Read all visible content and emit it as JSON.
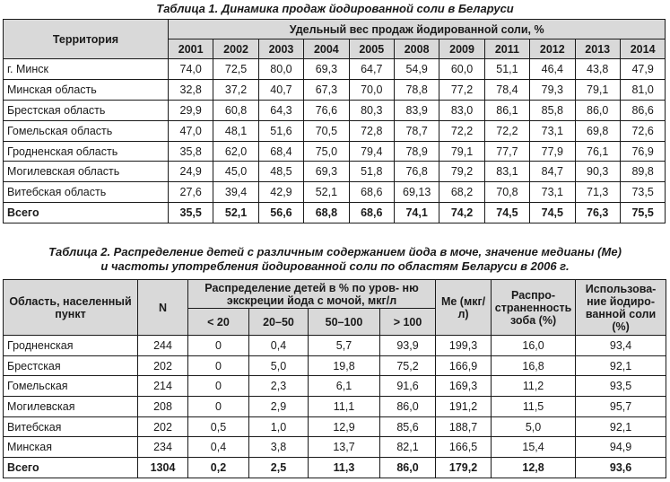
{
  "table1": {
    "caption": "Таблица 1. Динамика продаж йодированной соли в Беларуси",
    "territory_header": "Территория",
    "group_header": "Удельный вес продаж йодированной соли, %",
    "years": [
      "2001",
      "2002",
      "2003",
      "2004",
      "2005",
      "2008",
      "2009",
      "2011",
      "2012",
      "2013",
      "2014"
    ],
    "rows": [
      {
        "name": "г. Минск",
        "values": [
          "74,0",
          "72,5",
          "80,0",
          "69,3",
          "64,7",
          "54,9",
          "60,0",
          "51,1",
          "46,4",
          "43,8",
          "47,9"
        ]
      },
      {
        "name": "Минская область",
        "values": [
          "32,8",
          "37,2",
          "40,7",
          "67,3",
          "70,0",
          "78,8",
          "77,2",
          "78,4",
          "79,3",
          "79,1",
          "81,0"
        ]
      },
      {
        "name": "Брестская область",
        "values": [
          "29,9",
          "60,8",
          "64,3",
          "76,6",
          "80,3",
          "83,9",
          "83,0",
          "86,1",
          "85,8",
          "86,0",
          "86,6"
        ]
      },
      {
        "name": "Гомельская область",
        "values": [
          "47,0",
          "48,1",
          "51,6",
          "70,5",
          "72,8",
          "78,7",
          "72,2",
          "72,2",
          "73,1",
          "69,8",
          "72,6"
        ]
      },
      {
        "name": "Гродненская область",
        "values": [
          "35,8",
          "62,0",
          "68,4",
          "75,0",
          "79,4",
          "78,9",
          "79,1",
          "77,7",
          "77,9",
          "76,1",
          "76,9"
        ]
      },
      {
        "name": "Могилевская область",
        "values": [
          "24,9",
          "45,0",
          "48,5",
          "69,3",
          "51,8",
          "76,8",
          "79,2",
          "83,1",
          "84,7",
          "90,3",
          "89,8"
        ]
      },
      {
        "name": "Витебская область",
        "values": [
          "27,6",
          "39,4",
          "42,9",
          "52,1",
          "68,6",
          "69,13",
          "68,2",
          "70,8",
          "73,1",
          "71,3",
          "73,5"
        ]
      }
    ],
    "total": {
      "name": "Всего",
      "values": [
        "35,5",
        "52,1",
        "56,6",
        "68,8",
        "68,6",
        "74,1",
        "74,2",
        "74,5",
        "74,5",
        "76,3",
        "75,5"
      ]
    }
  },
  "table2": {
    "caption_line1": "Таблица 2. Распределение детей с различным содержанием йода в моче, значение медианы (Ме)",
    "caption_line2": "и частоты употребления йодированной соли по областям Беларуси в 2006 г.",
    "region_header": "Область, населенный пункт",
    "n_header": "N",
    "dist_header": "Распределение детей в % по уров- ню экскреции йода с мочой, мкг/л",
    "bins": [
      "< 20",
      "20–50",
      "50–100",
      "> 100"
    ],
    "me_header": "Ме (мкг/л)",
    "goiter_header": "Распро- страненность зоба (%)",
    "salt_header": "Использова- ние йодиро- ванной соли (%)",
    "rows": [
      {
        "name": "Гродненская",
        "n": "244",
        "b1": "0",
        "b2": "0,4",
        "b3": "5,7",
        "b4": "93,9",
        "me": "199,3",
        "goiter": "16,0",
        "salt": "93,4"
      },
      {
        "name": "Брестская",
        "n": "202",
        "b1": "0",
        "b2": "5,0",
        "b3": "19,8",
        "b4": "75,2",
        "me": "166,9",
        "goiter": "16,8",
        "salt": "92,1"
      },
      {
        "name": "Гомельская",
        "n": "214",
        "b1": "0",
        "b2": "2,3",
        "b3": "6,1",
        "b4": "91,6",
        "me": "169,3",
        "goiter": "11,2",
        "salt": "93,5"
      },
      {
        "name": "Могилевская",
        "n": "208",
        "b1": "0",
        "b2": "2,9",
        "b3": "11,1",
        "b4": "86,0",
        "me": "191,2",
        "goiter": "11,5",
        "salt": "95,7"
      },
      {
        "name": "Витебская",
        "n": "202",
        "b1": "0,5",
        "b2": "1,0",
        "b3": "12,9",
        "b4": "85,6",
        "me": "188,7",
        "goiter": "5,0",
        "salt": "92,1"
      },
      {
        "name": "Минская",
        "n": "234",
        "b1": "0,4",
        "b2": "3,8",
        "b3": "13,7",
        "b4": "82,1",
        "me": "166,5",
        "goiter": "15,4",
        "salt": "94,9"
      }
    ],
    "total": {
      "name": "Всего",
      "n": "1304",
      "b1": "0,2",
      "b2": "2,5",
      "b3": "11,3",
      "b4": "86,0",
      "me": "179,2",
      "goiter": "12,8",
      "salt": "93,6"
    }
  }
}
